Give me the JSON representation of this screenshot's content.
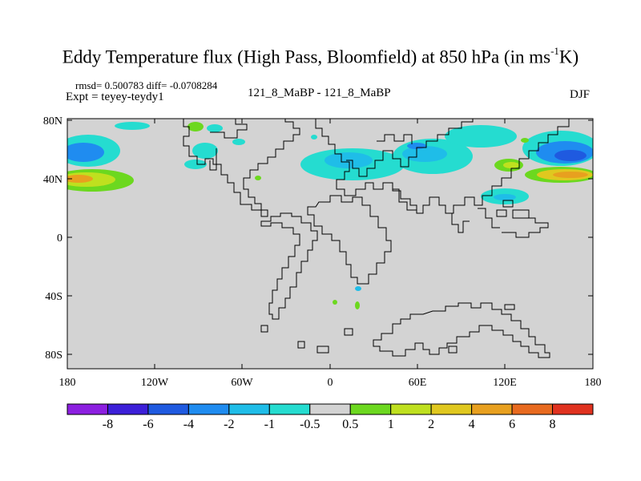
{
  "title": {
    "main": "Eddy Temperature flux (High Pass, Bloomfield) at 850 hPa (in ms",
    "sup": "-1",
    "end": "K)"
  },
  "stats": "rmsd= 0.500783 diff= -0.0708284",
  "expt": "Expt = teyey-teydy1",
  "run": "121_8_MaBP - 121_8_MaBP",
  "season": "DJF",
  "lat_ticks": [
    "80N",
    "40N",
    "0",
    "40S",
    "80S"
  ],
  "lon_ticks": [
    "180",
    "120W",
    "60W",
    "0",
    "60E",
    "120E",
    "180"
  ],
  "colorbar": {
    "labels": [
      "-8",
      "-6",
      "-4",
      "-2",
      "-1",
      "-0.5",
      "0.5",
      "1",
      "2",
      "4",
      "6",
      "8"
    ],
    "colors": [
      "#8c1fe0",
      "#3c1fd8",
      "#1f5ae0",
      "#1f8cf0",
      "#1fbde8",
      "#25dcd0",
      "#d3d3d3",
      "#6cd81f",
      "#bfe01f",
      "#e0c81f",
      "#e8a01f",
      "#e86a1f",
      "#e0321f"
    ]
  }
}
